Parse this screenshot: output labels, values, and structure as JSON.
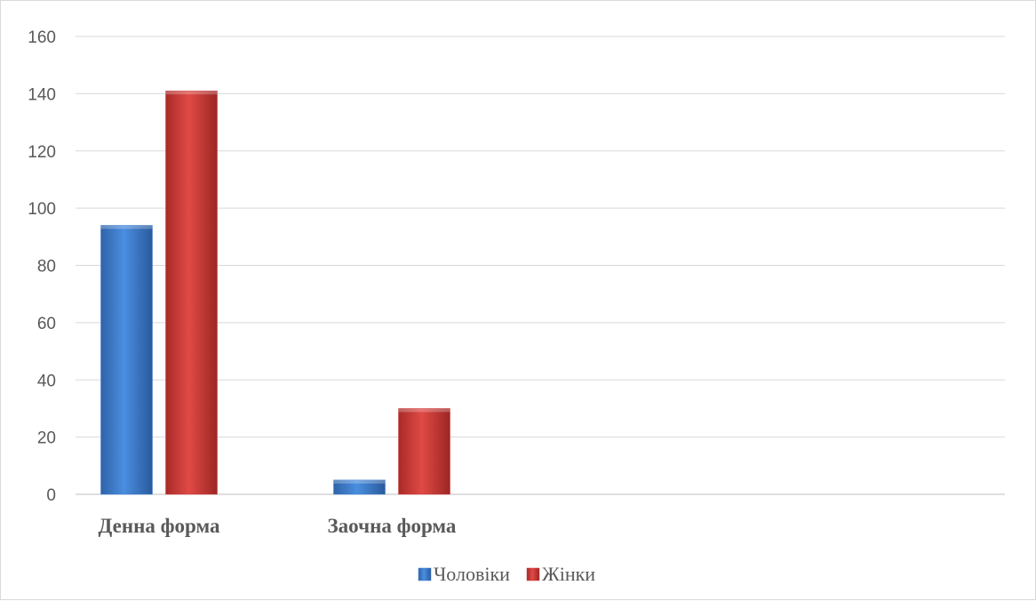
{
  "chart_data": {
    "type": "bar",
    "title": "",
    "xlabel": "",
    "ylabel": "",
    "ylim": [
      0,
      160
    ],
    "ytick_step": 20,
    "grid": true,
    "legend_position": "bottom",
    "categories": [
      "Денна форма",
      "Заочна форма"
    ],
    "series": [
      {
        "name": "Чоловіки",
        "values": [
          94,
          5
        ],
        "color": "#3f7fcf"
      },
      {
        "name": "Жінки",
        "values": [
          141,
          30
        ],
        "color": "#cc3d3a"
      }
    ]
  }
}
